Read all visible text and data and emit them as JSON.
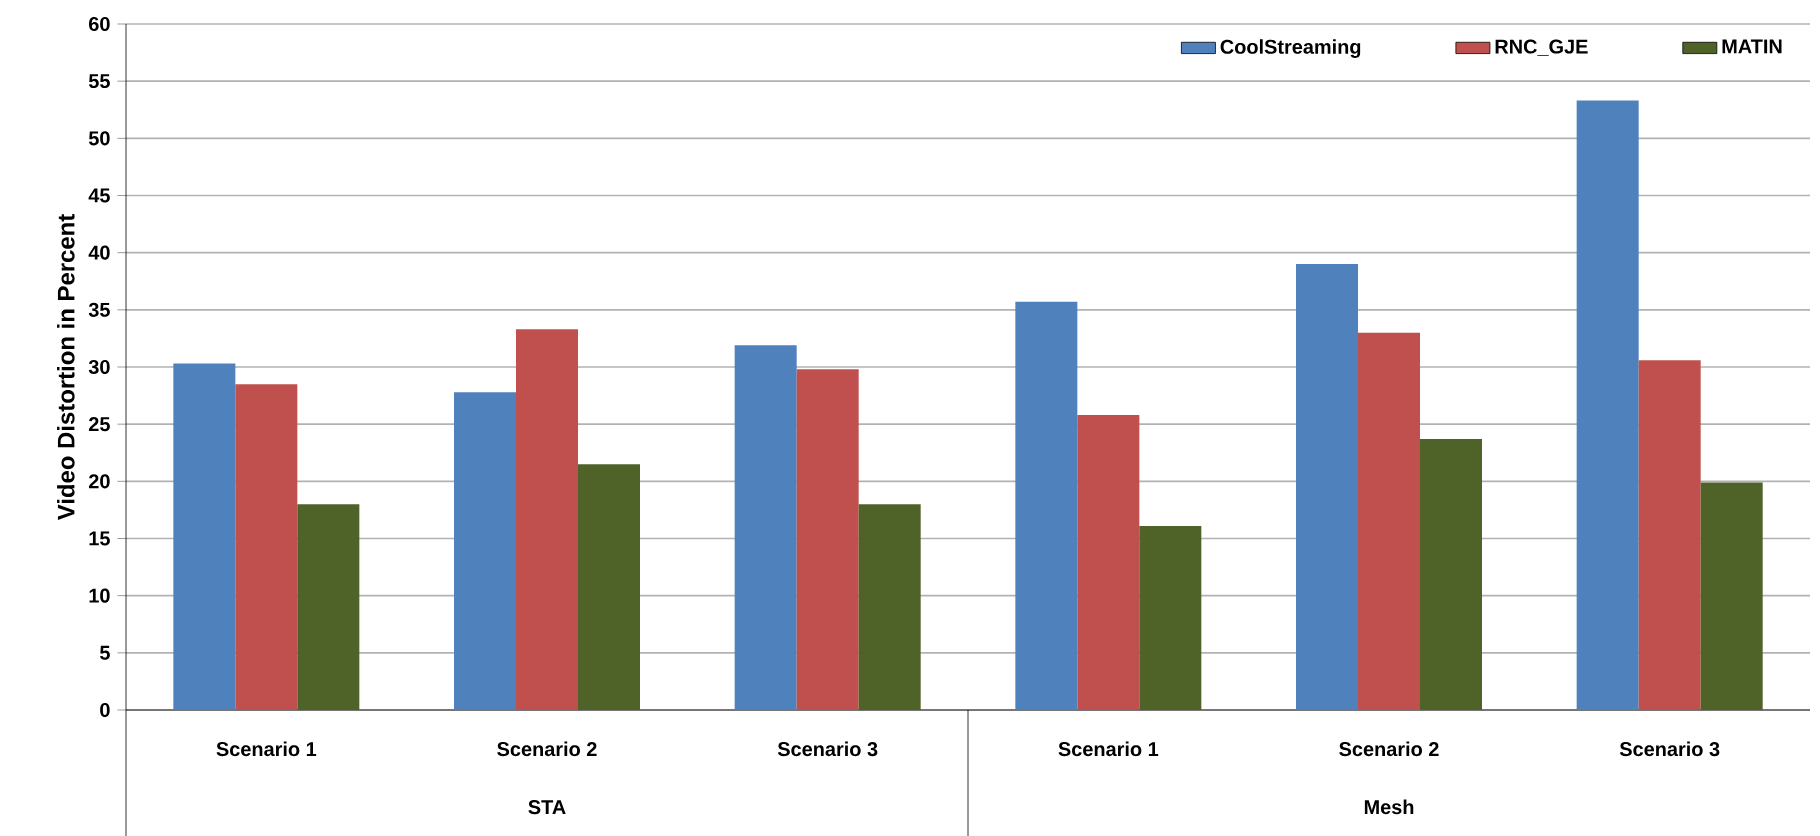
{
  "chart_data": {
    "type": "bar",
    "ylabel": "Video Distortion in Percent",
    "categories": [
      "Scenario 1",
      "Scenario 2",
      "Scenario 3",
      "Scenario 1",
      "Scenario 2",
      "Scenario 3"
    ],
    "series": [
      {
        "name": "CoolStreaming",
        "color": "#4f81bd",
        "values": [
          30.3,
          27.8,
          31.9,
          35.7,
          39.0,
          53.3
        ]
      },
      {
        "name": "RNC_GJE",
        "color": "#c0504d",
        "values": [
          28.5,
          33.3,
          29.8,
          25.8,
          33.0,
          30.6
        ]
      },
      {
        "name": "MATIN",
        "color": "#4f6228",
        "values": [
          18.0,
          21.5,
          18.0,
          16.1,
          23.7,
          19.9
        ]
      }
    ],
    "ylim": [
      0,
      60
    ],
    "yticks": [
      0,
      5,
      10,
      15,
      20,
      25,
      30,
      35,
      40,
      45,
      50,
      55,
      60
    ],
    "grid": "y",
    "legend": "top right",
    "annotations": [
      "STA",
      "Mesh"
    ]
  }
}
